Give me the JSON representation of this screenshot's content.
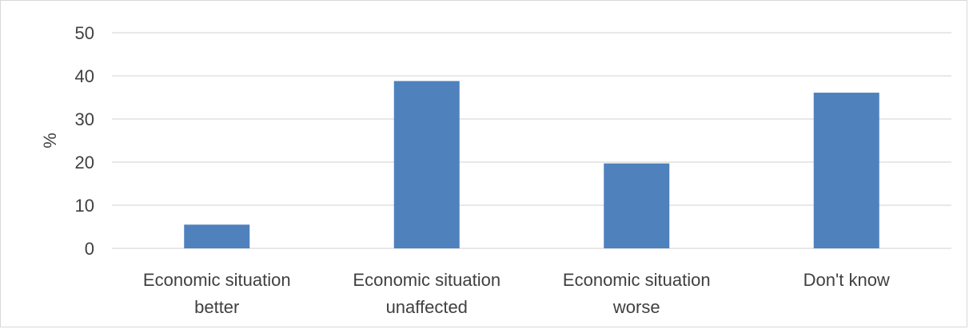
{
  "chart_data": {
    "type": "bar",
    "categories": [
      [
        "Economic situation",
        "better"
      ],
      [
        "Economic situation",
        "unaffected"
      ],
      [
        "Economic situation",
        "worse"
      ],
      [
        "Don't know"
      ]
    ],
    "values": [
      5.5,
      38.8,
      19.7,
      36.1
    ],
    "ylabel": "%",
    "xlabel": "",
    "yticks": [
      "0",
      "10",
      "20",
      "30",
      "40",
      "50"
    ],
    "ylim": [
      0,
      50
    ],
    "grid": true,
    "bar_color": "#4f81bd",
    "gridline_color": "#d9d9d9"
  }
}
